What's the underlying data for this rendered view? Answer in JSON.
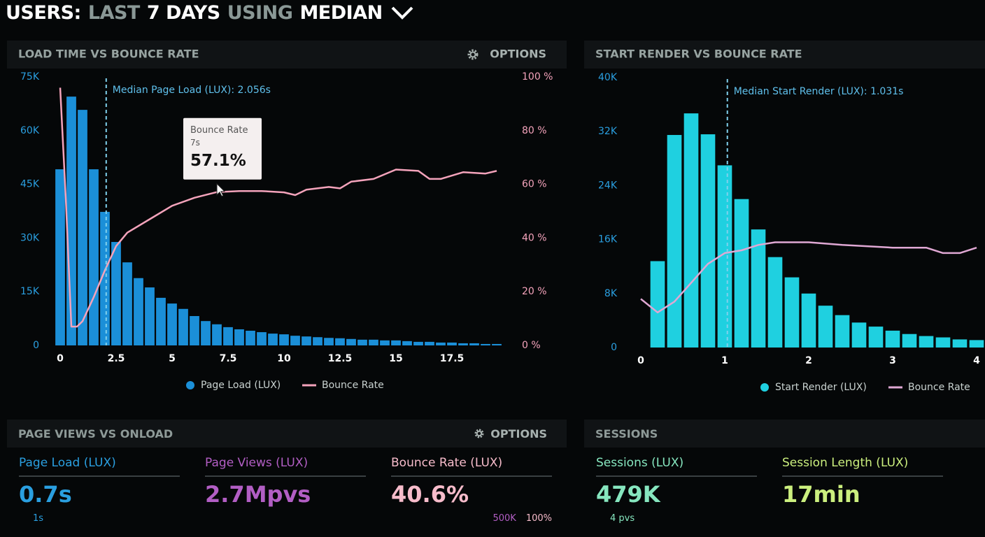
{
  "header": {
    "parts": [
      {
        "text": "USERS:",
        "color": "#ffffff"
      },
      {
        "text": "LAST",
        "color": "#8a9896"
      },
      {
        "text": "7 DAYS",
        "color": "#ffffff"
      },
      {
        "text": "USING",
        "color": "#8a9896"
      },
      {
        "text": "MEDIAN",
        "color": "#ffffff"
      }
    ]
  },
  "chart_data": [
    {
      "type": "bar",
      "title": "LOAD TIME VS BOUNCE RATE",
      "button": "OPTIONS",
      "xlim": [
        -0.3,
        19.9
      ],
      "xticks": [
        0,
        2.5,
        5,
        7.5,
        10,
        12.5,
        15,
        17.5
      ],
      "ylim": [
        0,
        75000
      ],
      "yticks": [
        0,
        {
          "value": 15000,
          "label": "15K"
        },
        {
          "value": 30000,
          "label": "30K"
        },
        {
          "value": 45000,
          "label": "45K"
        },
        {
          "value": 60000,
          "label": "60K"
        },
        {
          "value": 75000,
          "label": "75K"
        }
      ],
      "y2lim": [
        0,
        100
      ],
      "y2ticks": [
        {
          "value": 0,
          "label": "0 %"
        },
        {
          "value": 20,
          "label": "20 %"
        },
        {
          "value": 40,
          "label": "40 %"
        },
        {
          "value": 60,
          "label": "60 %"
        },
        {
          "value": 80,
          "label": "80 %"
        },
        {
          "value": 100,
          "label": "100 %"
        }
      ],
      "annotation": {
        "x": 2.056,
        "label": "Median Page Load (LUX): 2.056s"
      },
      "tooltip": {
        "title": "Bounce Rate",
        "x": {
          "value": 7,
          "label": "7s"
        },
        "value": {
          "value": 57.1,
          "label": "57.1%"
        }
      },
      "series": [
        {
          "name": "Page Load (LUX)",
          "type": "bar",
          "color": "#1b8fd8",
          "x": [
            0,
            0.5,
            1,
            1.5,
            2,
            2.5,
            3,
            3.5,
            4,
            4.5,
            5,
            5.5,
            6,
            6.5,
            7,
            7.5,
            8,
            8.5,
            9,
            9.5,
            10,
            10.5,
            11,
            11.5,
            12,
            12.5,
            13,
            13.5,
            14,
            14.5,
            15,
            15.5,
            16,
            16.5,
            17,
            17.5,
            18,
            18.5,
            19,
            19.5
          ],
          "values": [
            49200,
            69500,
            65800,
            49200,
            37300,
            28900,
            23200,
            18800,
            16200,
            13300,
            11700,
            10200,
            8200,
            6800,
            5900,
            5100,
            4500,
            4100,
            3700,
            3300,
            3100,
            2700,
            2500,
            2300,
            2100,
            2000,
            1800,
            1600,
            1600,
            1400,
            1400,
            1200,
            1000,
            1000,
            800,
            800,
            600,
            600,
            400,
            400
          ]
        },
        {
          "name": "Bounce Rate",
          "type": "line",
          "axis": "y2",
          "color": "#f4a3bb",
          "x": [
            0,
            0.25,
            0.5,
            0.75,
            1,
            1.5,
            2,
            2.5,
            3,
            4,
            5,
            6,
            7,
            8,
            9,
            10,
            10.5,
            11,
            12,
            12.5,
            13,
            14,
            15,
            16,
            16.5,
            17,
            18,
            19,
            19.5
          ],
          "values": [
            96,
            55,
            7,
            7,
            9,
            18,
            28,
            37,
            42,
            47,
            52,
            55,
            57.1,
            57.5,
            57.5,
            57,
            56,
            58,
            59,
            58.5,
            61,
            62,
            65.5,
            65,
            62,
            62,
            64.5,
            64,
            65
          ]
        }
      ]
    },
    {
      "type": "bar",
      "title": "START RENDER VS BOUNCE RATE",
      "xlim": [
        -0.15,
        4.1
      ],
      "xticks": [
        0,
        1,
        2,
        3,
        4
      ],
      "ylim": [
        0,
        40000
      ],
      "yticks": [
        0,
        {
          "value": 8000,
          "label": "8K"
        },
        {
          "value": 16000,
          "label": "16K"
        },
        {
          "value": 24000,
          "label": "24K"
        },
        {
          "value": 32000,
          "label": "32K"
        },
        {
          "value": 40000,
          "label": "40K"
        }
      ],
      "y2lim": [
        0,
        100
      ],
      "annotation": {
        "x": 1.031,
        "label": "Median Start Render (LUX): 1.031s"
      },
      "series": [
        {
          "name": "Start Render (LUX)",
          "type": "bar",
          "color": "#1fd0e0",
          "x": [
            0.2,
            0.4,
            0.6,
            0.8,
            1,
            1.2,
            1.4,
            1.6,
            1.8,
            2,
            2.2,
            2.4,
            2.6,
            2.8,
            3,
            3.2,
            3.4,
            3.6,
            3.8,
            4
          ],
          "values": [
            12800,
            31500,
            34700,
            31600,
            27000,
            22000,
            17500,
            13400,
            10400,
            8000,
            6200,
            4800,
            3700,
            3100,
            2500,
            2000,
            1700,
            1500,
            1200,
            1100
          ]
        },
        {
          "name": "Bounce Rate",
          "type": "line",
          "axis": "y2",
          "color": "#e0a8d4",
          "x": [
            0,
            0.2,
            0.4,
            0.6,
            0.8,
            1,
            1.2,
            1.4,
            1.6,
            1.8,
            2,
            2.4,
            3,
            3.4,
            3.6,
            3.8,
            4
          ],
          "values": [
            18,
            13,
            17,
            24,
            31,
            35,
            36,
            38,
            39,
            39,
            39,
            38,
            37,
            37,
            35,
            35,
            37
          ]
        }
      ]
    }
  ],
  "stat_panels": [
    {
      "title": "PAGE VIEWS VS ONLOAD",
      "button": "OPTIONS",
      "stats": [
        {
          "label": "Page Load (LUX)",
          "value": "0.7s",
          "color": "#2a9fe0",
          "notes": [
            {
              "text": "1s",
              "color": "#2a9fe0"
            }
          ]
        },
        {
          "label": "Page Views (LUX)",
          "value": "2.7Mpvs",
          "color": "#b25ec4",
          "notes": []
        },
        {
          "label": "Bounce Rate (LUX)",
          "value": "40.6%",
          "color": "#f7bccb",
          "notes": [
            {
              "text": "500K",
              "color": "#b25ec4"
            },
            {
              "text": "100%",
              "color": "#f7bccb"
            }
          ]
        }
      ]
    },
    {
      "title": "SESSIONS",
      "stats": [
        {
          "label": "Sessions (LUX)",
          "value": "479K",
          "color": "#86e6bf",
          "notes": [
            {
              "text": "4 pvs",
              "color": "#86e6bf"
            }
          ]
        },
        {
          "label": "Session Length (LUX)",
          "value": "17min",
          "color": "#cbef7e",
          "notes": []
        }
      ]
    }
  ]
}
